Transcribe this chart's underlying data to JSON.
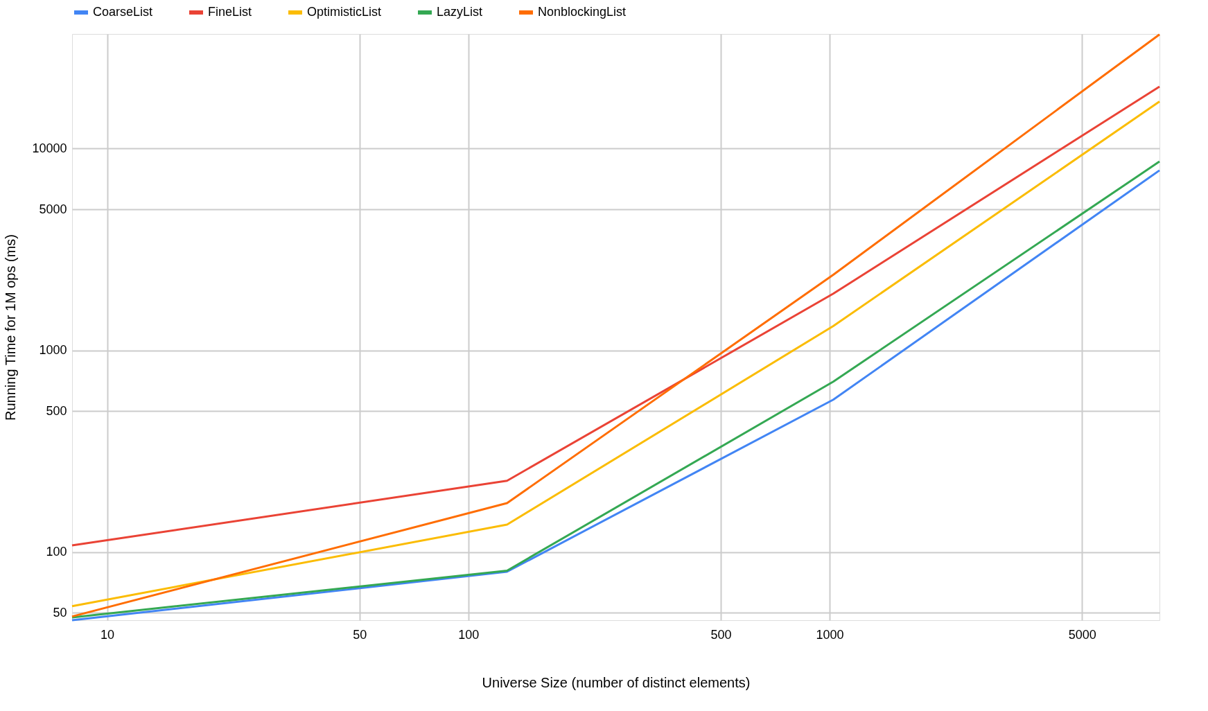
{
  "chart_data": {
    "type": "line",
    "xlabel": "Universe Size (number of distinct elements)",
    "ylabel": "Running Time for 1M ops (ms)",
    "x": [
      8,
      128,
      1024,
      8192
    ],
    "series": [
      {
        "name": "CoarseList",
        "color": "#4285f4",
        "values": [
          46,
          80,
          570,
          7800
        ]
      },
      {
        "name": "FineList",
        "color": "#ea4335",
        "values": [
          108,
          226,
          1910,
          20300
        ]
      },
      {
        "name": "OptimisticList",
        "color": "#fbbc04",
        "values": [
          54,
          137,
          1320,
          17100
        ]
      },
      {
        "name": "LazyList",
        "color": "#34a853",
        "values": [
          47.5,
          81,
          700,
          8630
        ]
      },
      {
        "name": "NonblockingList",
        "color": "#ff6d01",
        "values": [
          48,
          175,
          2370,
          36800
        ]
      }
    ],
    "log": "xy",
    "xlim": [
      8,
      8192
    ],
    "ylim": [
      46,
      37000
    ],
    "xticks": [
      10,
      50,
      100,
      500,
      1000,
      5000
    ],
    "yticks": [
      50,
      100,
      500,
      1000,
      5000,
      10000
    ],
    "grid": true,
    "legend": "top",
    "marker": "none",
    "line_style": "solid"
  }
}
